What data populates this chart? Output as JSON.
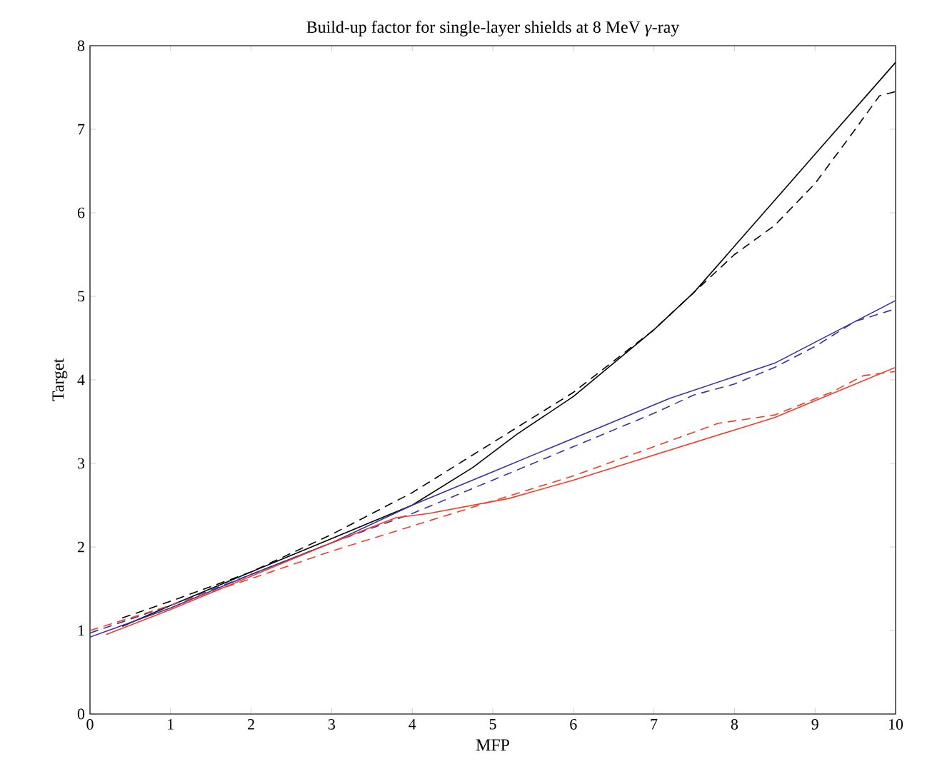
{
  "chart_data": {
    "type": "line",
    "title": "Build-up factor for single-layer shields at 8 MeV *γ*-ray",
    "xlabel": "MFP",
    "ylabel": "Target",
    "xlim": [
      0,
      10
    ],
    "ylim": [
      0,
      8
    ],
    "xticks": [
      0,
      1,
      2,
      3,
      4,
      5,
      6,
      7,
      8,
      9,
      10
    ],
    "yticks": [
      0,
      1,
      2,
      3,
      4,
      5,
      6,
      7,
      8
    ],
    "grid": false,
    "marker": "none",
    "series": [
      {
        "color": "#000000",
        "line_style": "solid",
        "x": [
          0.4,
          1,
          2,
          3,
          4,
          4.75,
          5.3,
          6,
          7,
          7.5,
          8,
          9,
          10
        ],
        "values": [
          1.05,
          1.3,
          1.7,
          2.1,
          2.5,
          2.95,
          3.35,
          3.8,
          4.6,
          5.05,
          5.6,
          6.7,
          7.8
        ]
      },
      {
        "color": "#000000",
        "line_style": "dashed",
        "x": [
          0.4,
          1,
          2,
          3,
          4,
          5,
          6,
          7,
          7.5,
          8,
          8.5,
          9,
          9.5,
          9.8,
          10
        ],
        "values": [
          1.15,
          1.35,
          1.7,
          2.15,
          2.65,
          3.25,
          3.85,
          4.6,
          5.05,
          5.5,
          5.85,
          6.35,
          7.0,
          7.4,
          7.45
        ]
      },
      {
        "color": "#3b2fa0",
        "line_style": "solid",
        "x": [
          0,
          1,
          2,
          3,
          4,
          5,
          6,
          7.2,
          8.5,
          9,
          10
        ],
        "values": [
          0.92,
          1.27,
          1.67,
          2.05,
          2.5,
          2.9,
          3.3,
          3.78,
          4.2,
          4.45,
          4.95
        ]
      },
      {
        "color": "#3b2fa0",
        "line_style": "dashed",
        "x": [
          0,
          1,
          2,
          3,
          4,
          5,
          6,
          7,
          7.5,
          8,
          8.5,
          9,
          9.5,
          10
        ],
        "values": [
          0.97,
          1.3,
          1.67,
          2.05,
          2.4,
          2.8,
          3.2,
          3.6,
          3.82,
          3.95,
          4.15,
          4.4,
          4.7,
          4.85
        ]
      },
      {
        "color": "#f03c28",
        "line_style": "solid",
        "x": [
          0.2,
          1,
          2,
          3,
          3.8,
          4.2,
          5.2,
          6,
          7,
          8,
          8.5,
          9,
          10
        ],
        "values": [
          0.95,
          1.25,
          1.65,
          2.05,
          2.35,
          2.4,
          2.58,
          2.8,
          3.1,
          3.4,
          3.55,
          3.75,
          4.15
        ]
      },
      {
        "color": "#f03c28",
        "line_style": "dashed",
        "x": [
          0,
          1,
          2,
          3,
          4,
          5,
          6,
          7,
          7.8,
          8.5,
          9.2,
          9.6,
          10
        ],
        "values": [
          1.0,
          1.3,
          1.62,
          1.95,
          2.25,
          2.55,
          2.85,
          3.2,
          3.48,
          3.58,
          3.85,
          4.05,
          4.1
        ]
      }
    ]
  }
}
